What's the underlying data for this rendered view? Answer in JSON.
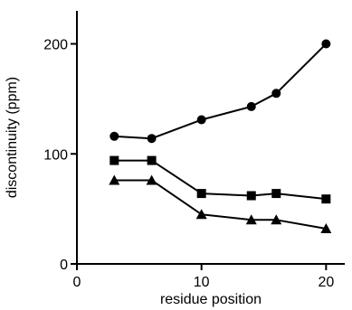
{
  "chart_data": {
    "type": "line",
    "title": "",
    "xlabel": "residue position",
    "ylabel": "discontinuity (ppm)",
    "xlim": [
      0,
      21.5
    ],
    "ylim": [
      0,
      230
    ],
    "x_ticks": [
      0,
      10,
      20
    ],
    "y_ticks": [
      0,
      100,
      200
    ],
    "grid": false,
    "legend": "none",
    "series": [
      {
        "marker": "circle",
        "points": [
          {
            "x": 3,
            "y": 116
          },
          {
            "x": 6,
            "y": 114
          },
          {
            "x": 10,
            "y": 131
          },
          {
            "x": 14,
            "y": 143
          },
          {
            "x": 16,
            "y": 155
          },
          {
            "x": 20,
            "y": 200
          }
        ]
      },
      {
        "marker": "square",
        "points": [
          {
            "x": 3,
            "y": 94
          },
          {
            "x": 6,
            "y": 94
          },
          {
            "x": 10,
            "y": 64
          },
          {
            "x": 14,
            "y": 62
          },
          {
            "x": 16,
            "y": 64
          },
          {
            "x": 20,
            "y": 59
          }
        ]
      },
      {
        "marker": "triangle",
        "points": [
          {
            "x": 3,
            "y": 76
          },
          {
            "x": 6,
            "y": 76
          },
          {
            "x": 10,
            "y": 45
          },
          {
            "x": 14,
            "y": 40
          },
          {
            "x": 16,
            "y": 40
          },
          {
            "x": 20,
            "y": 32
          }
        ]
      }
    ]
  }
}
